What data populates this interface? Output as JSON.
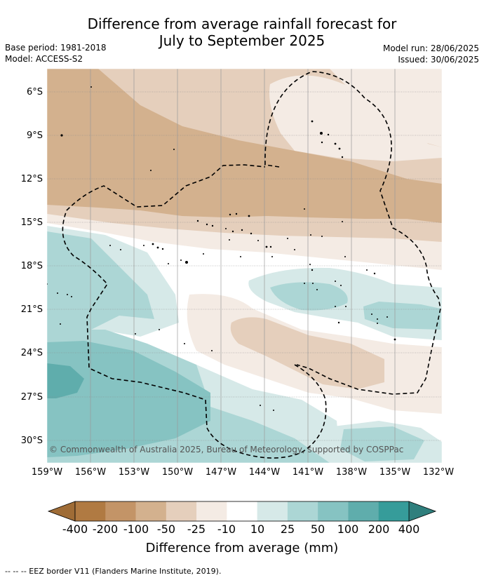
{
  "header": {
    "title_line1": "Difference from average rainfall forecast for",
    "title_line2": "July to September 2025",
    "base_period": "Base period: 1981-2018",
    "model": "Model: ACCESS-S2",
    "model_run": "Model run: 28/06/2025",
    "issued": "Issued: 30/06/2025"
  },
  "map": {
    "lat_labels": [
      "6°S",
      "9°S",
      "12°S",
      "15°S",
      "18°S",
      "21°S",
      "24°S",
      "27°S",
      "30°S"
    ],
    "lon_labels": [
      "159°W",
      "156°W",
      "153°W",
      "150°W",
      "147°W",
      "144°W",
      "141°W",
      "138°W",
      "135°W",
      "132°W"
    ],
    "copyright": "© Commonwealth of Australia 2025, Bureau of Meteorology, supported by COSPPac",
    "gridlines": true
  },
  "colorbar": {
    "labels": [
      "-400",
      "-200",
      "-100",
      "-50",
      "-25",
      "-10",
      "10",
      "25",
      "50",
      "100",
      "200",
      "400"
    ],
    "colors": [
      "#b07a42",
      "#c39467",
      "#d3b18e",
      "#e5cfbc",
      "#f4ebe4",
      "#ffffff",
      "#d6e9e8",
      "#acd6d5",
      "#86c3c2",
      "#5fadac",
      "#369c9a"
    ],
    "under_color": "#9f6c36",
    "over_color": "#2f7f7d",
    "title": "Difference from average (mm)"
  },
  "legend": {
    "eez_note": "--  --  -- EEZ border V11 (Flanders Marine Institute, 2019)."
  }
}
